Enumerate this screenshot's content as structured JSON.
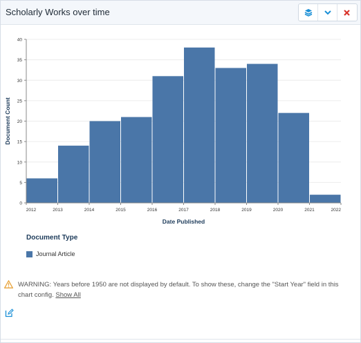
{
  "header": {
    "title": "Scholarly Works over time",
    "buttons": [
      {
        "icon": "layers-icon",
        "color": "#1a8fd6"
      },
      {
        "icon": "chevron-down-icon",
        "color": "#1a8fd6"
      },
      {
        "icon": "close-icon",
        "color": "#d9342b"
      }
    ]
  },
  "chart_data": {
    "type": "bar",
    "title": "",
    "xlabel": "Date Published",
    "ylabel": "Document Count",
    "categories": [
      "2012",
      "2013",
      "2014",
      "2015",
      "2016",
      "2017",
      "2018",
      "2019",
      "2020",
      "2021"
    ],
    "x_ticks": [
      "2012",
      "2013",
      "2014",
      "2015",
      "2016",
      "2017",
      "2018",
      "2019",
      "2020",
      "2021",
      "2022"
    ],
    "series": [
      {
        "name": "Journal Article",
        "values": [
          6,
          14,
          20,
          21,
          31,
          38,
          33,
          34,
          22,
          2
        ],
        "color": "#4a76a8"
      }
    ],
    "ylim": [
      0,
      40
    ],
    "y_ticks": [
      0,
      5,
      10,
      15,
      20,
      25,
      30,
      35,
      40
    ],
    "grid": true
  },
  "legend": {
    "title": "Document Type",
    "items": [
      {
        "label": "Journal Article",
        "color": "#4a76a8"
      }
    ]
  },
  "warning": {
    "text": "WARNING: Years before 1950 are not displayed by default. To show these, change the \"Start Year\" field in this chart config.",
    "link": "Show All"
  },
  "colors": {
    "accent": "#1a8fd6",
    "bar": "#4a76a8",
    "warning": "#e8a33a",
    "close": "#d9342b"
  }
}
